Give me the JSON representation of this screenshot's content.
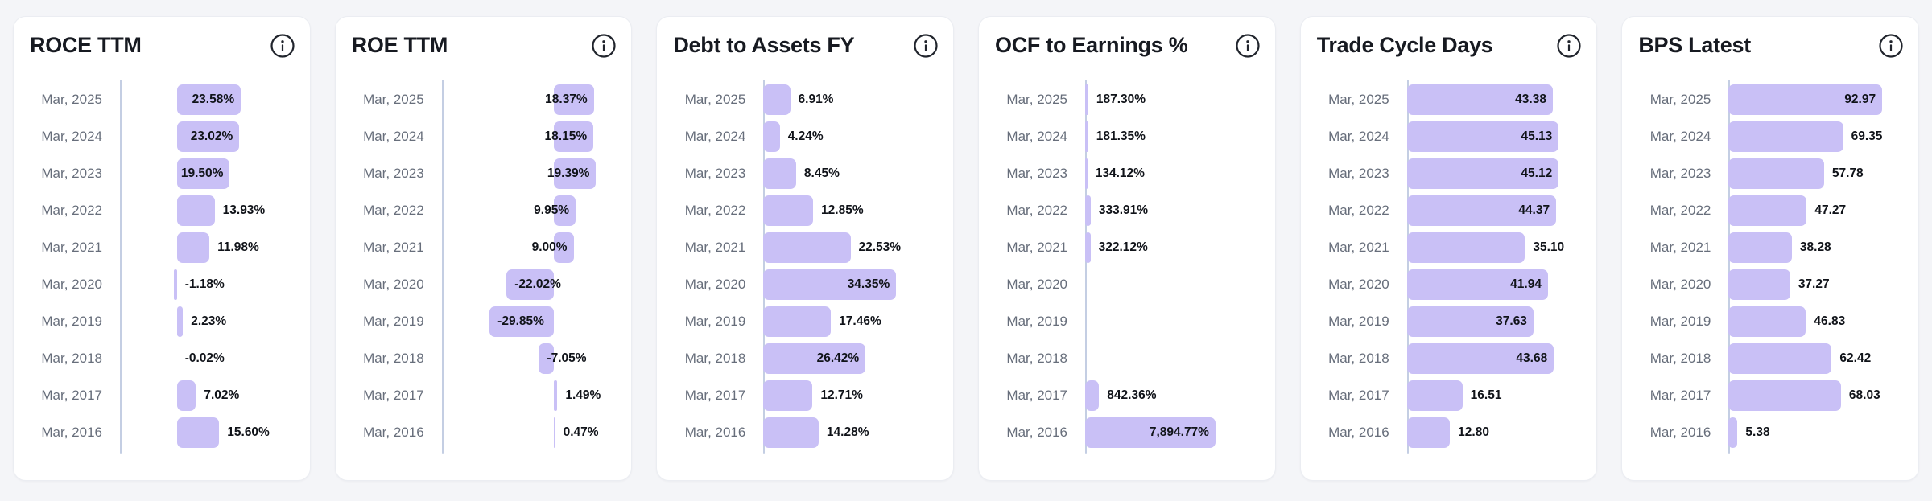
{
  "page": {
    "background": "#f4f5f8"
  },
  "colors": {
    "bar": "#c9c0f6",
    "axis_line": "#c4cee3",
    "card_bg": "#ffffff",
    "card_border": "#ebedf2",
    "title_text": "#171a21",
    "period_text": "#676e7b",
    "value_text": "#101319"
  },
  "icons": {
    "card_action": "info-icon"
  },
  "chart_data": [
    {
      "type": "bar",
      "orientation": "horizontal",
      "title": "ROCE TTM",
      "xlim": [
        -21,
        46
      ],
      "grid": false,
      "legend": false,
      "rows": [
        {
          "period": "Mar, 2025",
          "value": 23.58,
          "display": "23.58%",
          "label_pos": "in"
        },
        {
          "period": "Mar, 2024",
          "value": 23.02,
          "display": "23.02%",
          "label_pos": "in"
        },
        {
          "period": "Mar, 2023",
          "value": 19.5,
          "display": "19.50%",
          "label_pos": "in"
        },
        {
          "period": "Mar, 2022",
          "value": 13.93,
          "display": "13.93%",
          "label_pos": "out"
        },
        {
          "period": "Mar, 2021",
          "value": 11.98,
          "display": "11.98%",
          "label_pos": "out"
        },
        {
          "period": "Mar, 2020",
          "value": -1.18,
          "display": "-1.18%",
          "label_pos": "out"
        },
        {
          "period": "Mar, 2019",
          "value": 2.23,
          "display": "2.23%",
          "label_pos": "out"
        },
        {
          "period": "Mar, 2018",
          "value": -0.02,
          "display": "-0.02%",
          "label_pos": "out"
        },
        {
          "period": "Mar, 2017",
          "value": 7.02,
          "display": "7.02%",
          "label_pos": "out"
        },
        {
          "period": "Mar, 2016",
          "value": 15.6,
          "display": "15.60%",
          "label_pos": "out"
        }
      ]
    },
    {
      "type": "bar",
      "orientation": "horizontal",
      "title": "ROE TTM",
      "xlim": [
        -52,
        32
      ],
      "grid": false,
      "legend": false,
      "rows": [
        {
          "period": "Mar, 2025",
          "value": 18.37,
          "display": "18.37%",
          "label_pos": "in"
        },
        {
          "period": "Mar, 2024",
          "value": 18.15,
          "display": "18.15%",
          "label_pos": "in"
        },
        {
          "period": "Mar, 2023",
          "value": 19.39,
          "display": "19.39%",
          "label_pos": "in"
        },
        {
          "period": "Mar, 2022",
          "value": 9.95,
          "display": "9.95%",
          "label_pos": "in"
        },
        {
          "period": "Mar, 2021",
          "value": 9.0,
          "display": "9.00%",
          "label_pos": "in"
        },
        {
          "period": "Mar, 2020",
          "value": -22.02,
          "display": "-22.02%",
          "label_pos": "in"
        },
        {
          "period": "Mar, 2019",
          "value": -29.85,
          "display": "-29.85%",
          "label_pos": "in"
        },
        {
          "period": "Mar, 2018",
          "value": -7.05,
          "display": "-7.05%",
          "label_pos": "in"
        },
        {
          "period": "Mar, 2017",
          "value": 1.49,
          "display": "1.49%",
          "label_pos": "out"
        },
        {
          "period": "Mar, 2016",
          "value": 0.47,
          "display": "0.47%",
          "label_pos": "out"
        }
      ]
    },
    {
      "type": "bar",
      "orientation": "horizontal",
      "title": "Debt to Assets FY",
      "xlim": [
        0,
        47
      ],
      "grid": false,
      "legend": false,
      "rows": [
        {
          "period": "Mar, 2025",
          "value": 6.91,
          "display": "6.91%",
          "label_pos": "out"
        },
        {
          "period": "Mar, 2024",
          "value": 4.24,
          "display": "4.24%",
          "label_pos": "out"
        },
        {
          "period": "Mar, 2023",
          "value": 8.45,
          "display": "8.45%",
          "label_pos": "out"
        },
        {
          "period": "Mar, 2022",
          "value": 12.85,
          "display": "12.85%",
          "label_pos": "out"
        },
        {
          "period": "Mar, 2021",
          "value": 22.53,
          "display": "22.53%",
          "label_pos": "out"
        },
        {
          "period": "Mar, 2020",
          "value": 34.35,
          "display": "34.35%",
          "label_pos": "in"
        },
        {
          "period": "Mar, 2019",
          "value": 17.46,
          "display": "17.46%",
          "label_pos": "out"
        },
        {
          "period": "Mar, 2018",
          "value": 26.42,
          "display": "26.42%",
          "label_pos": "in"
        },
        {
          "period": "Mar, 2017",
          "value": 12.71,
          "display": "12.71%",
          "label_pos": "out"
        },
        {
          "period": "Mar, 2016",
          "value": 14.28,
          "display": "14.28%",
          "label_pos": "out"
        }
      ]
    },
    {
      "type": "bar",
      "orientation": "horizontal",
      "title": "OCF to Earnings %",
      "xlim": [
        0,
        11000
      ],
      "grid": false,
      "legend": false,
      "rows": [
        {
          "period": "Mar, 2025",
          "value": 187.3,
          "display": "187.30%",
          "label_pos": "out"
        },
        {
          "period": "Mar, 2024",
          "value": 181.35,
          "display": "181.35%",
          "label_pos": "out"
        },
        {
          "period": "Mar, 2023",
          "value": 134.12,
          "display": "134.12%",
          "label_pos": "out"
        },
        {
          "period": "Mar, 2022",
          "value": 333.91,
          "display": "333.91%",
          "label_pos": "out"
        },
        {
          "period": "Mar, 2021",
          "value": 322.12,
          "display": "322.12%",
          "label_pos": "out"
        },
        {
          "period": "Mar, 2020",
          "value": null,
          "display": null,
          "label_pos": null
        },
        {
          "period": "Mar, 2019",
          "value": null,
          "display": null,
          "label_pos": null
        },
        {
          "period": "Mar, 2018",
          "value": null,
          "display": null,
          "label_pos": null
        },
        {
          "period": "Mar, 2017",
          "value": 842.36,
          "display": "842.36%",
          "label_pos": "out"
        },
        {
          "period": "Mar, 2016",
          "value": 7894.77,
          "display": "7,894.77%",
          "label_pos": "in"
        }
      ]
    },
    {
      "type": "bar",
      "orientation": "horizontal",
      "title": "Trade Cycle Days",
      "xlim": [
        0,
        54
      ],
      "grid": false,
      "legend": false,
      "rows": [
        {
          "period": "Mar, 2025",
          "value": 43.38,
          "display": "43.38",
          "label_pos": "in"
        },
        {
          "period": "Mar, 2024",
          "value": 45.13,
          "display": "45.13",
          "label_pos": "in"
        },
        {
          "period": "Mar, 2023",
          "value": 45.12,
          "display": "45.12",
          "label_pos": "in"
        },
        {
          "period": "Mar, 2022",
          "value": 44.37,
          "display": "44.37",
          "label_pos": "in"
        },
        {
          "period": "Mar, 2021",
          "value": 35.1,
          "display": "35.10",
          "label_pos": "out"
        },
        {
          "period": "Mar, 2020",
          "value": 41.94,
          "display": "41.94",
          "label_pos": "in"
        },
        {
          "period": "Mar, 2019",
          "value": 37.63,
          "display": "37.63",
          "label_pos": "in"
        },
        {
          "period": "Mar, 2018",
          "value": 43.68,
          "display": "43.68",
          "label_pos": "in"
        },
        {
          "period": "Mar, 2017",
          "value": 16.51,
          "display": "16.51",
          "label_pos": "out"
        },
        {
          "period": "Mar, 2016",
          "value": 12.8,
          "display": "12.80",
          "label_pos": "out"
        }
      ]
    },
    {
      "type": "bar",
      "orientation": "horizontal",
      "title": "BPS Latest",
      "xlim": [
        0,
        110
      ],
      "grid": false,
      "legend": false,
      "rows": [
        {
          "period": "Mar, 2025",
          "value": 92.97,
          "display": "92.97",
          "label_pos": "in"
        },
        {
          "period": "Mar, 2024",
          "value": 69.35,
          "display": "69.35",
          "label_pos": "out"
        },
        {
          "period": "Mar, 2023",
          "value": 57.78,
          "display": "57.78",
          "label_pos": "out"
        },
        {
          "period": "Mar, 2022",
          "value": 47.27,
          "display": "47.27",
          "label_pos": "out"
        },
        {
          "period": "Mar, 2021",
          "value": 38.28,
          "display": "38.28",
          "label_pos": "out"
        },
        {
          "period": "Mar, 2020",
          "value": 37.27,
          "display": "37.27",
          "label_pos": "out"
        },
        {
          "period": "Mar, 2019",
          "value": 46.83,
          "display": "46.83",
          "label_pos": "out"
        },
        {
          "period": "Mar, 2018",
          "value": 62.42,
          "display": "62.42",
          "label_pos": "out"
        },
        {
          "period": "Mar, 2017",
          "value": 68.03,
          "display": "68.03",
          "label_pos": "out"
        },
        {
          "period": "Mar, 2016",
          "value": 5.38,
          "display": "5.38",
          "label_pos": "out"
        }
      ]
    }
  ]
}
